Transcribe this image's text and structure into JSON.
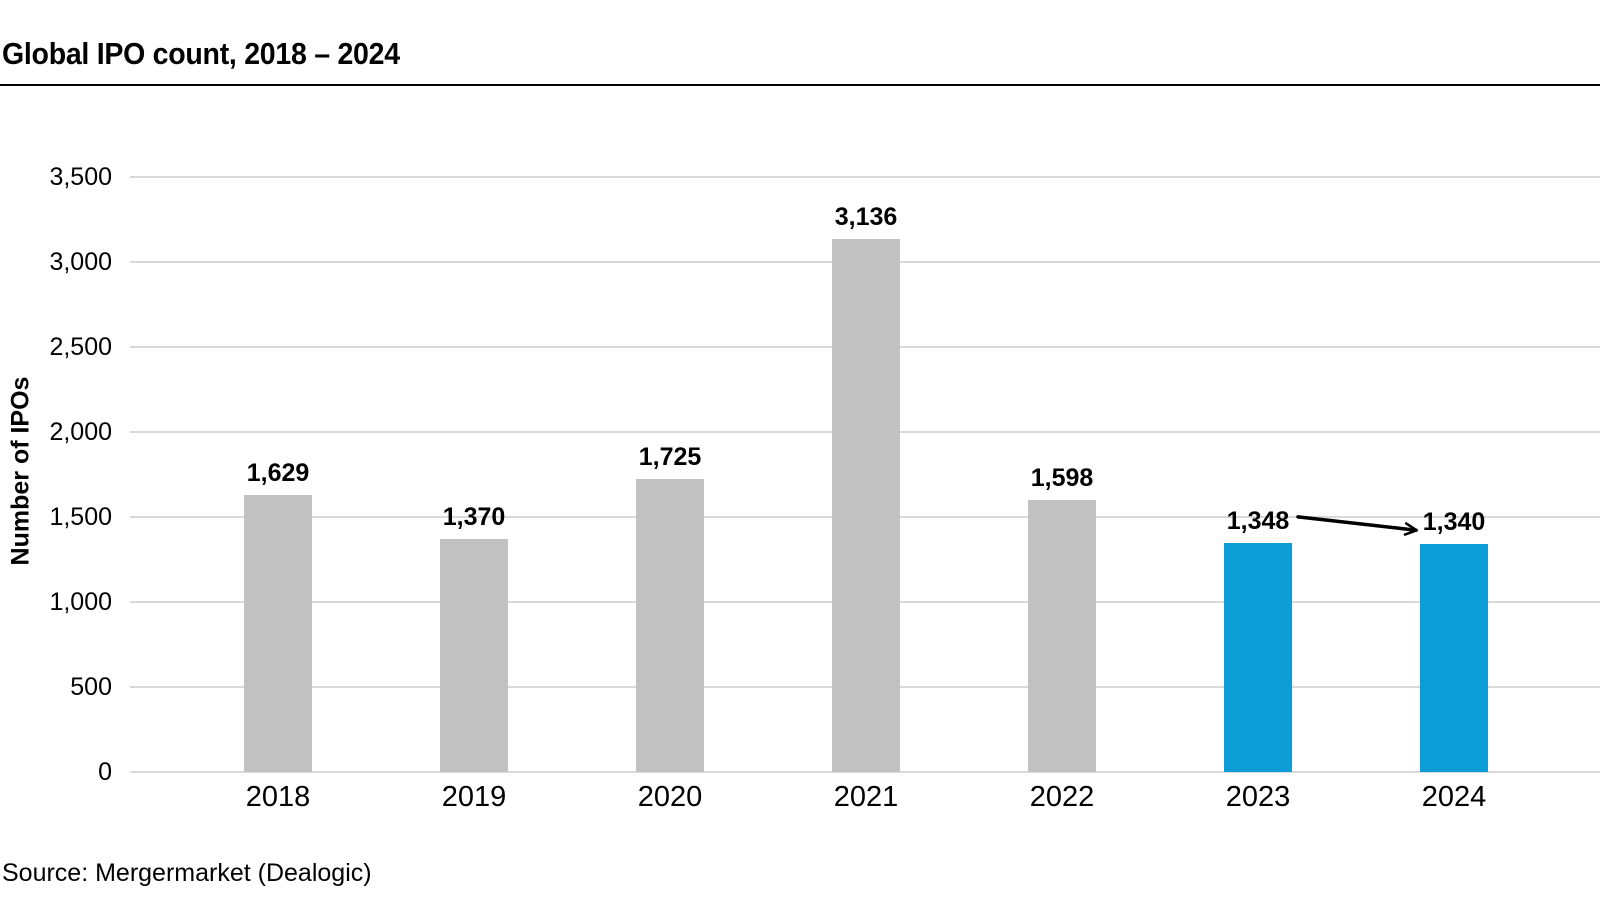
{
  "page": {
    "source_note": "Source: Mergermarket (Dealogic)"
  },
  "chart_data": {
    "type": "bar",
    "title": "Global IPO count, 2018 – 2024",
    "categories": [
      "2018",
      "2019",
      "2020",
      "2021",
      "2022",
      "2023",
      "2024"
    ],
    "values": [
      1629,
      1370,
      1725,
      3136,
      1598,
      1348,
      1340
    ],
    "data_labels": [
      "1,629",
      "1,370",
      "1,725",
      "3,136",
      "1,598",
      "1,348",
      "1,340"
    ],
    "bar_colors": [
      "#c1c1c1",
      "#c1c1c1",
      "#c1c1c1",
      "#c1c1c1",
      "#c1c1c1",
      "#0d9dd6",
      "#0d9dd6"
    ],
    "xlabel": "",
    "ylabel": "Number of IPOs",
    "ylim": [
      0,
      3500
    ],
    "ytick_step": 500,
    "ytick_labels": [
      "0",
      "500",
      "1,000",
      "1,500",
      "2,000",
      "2,500",
      "3,000",
      "3,500"
    ],
    "grid": "horizontal-only",
    "legend": "none",
    "annotation": {
      "type": "arrow",
      "from_label": "1,348",
      "to_label": "1,340",
      "from_category": "2023",
      "to_category": "2024",
      "color": "#000000"
    },
    "colors": {
      "default_bar": "#c1c1c1",
      "highlight_bar": "#0d9dd6",
      "gridline": "#d9d9d9",
      "text": "#000000"
    }
  }
}
